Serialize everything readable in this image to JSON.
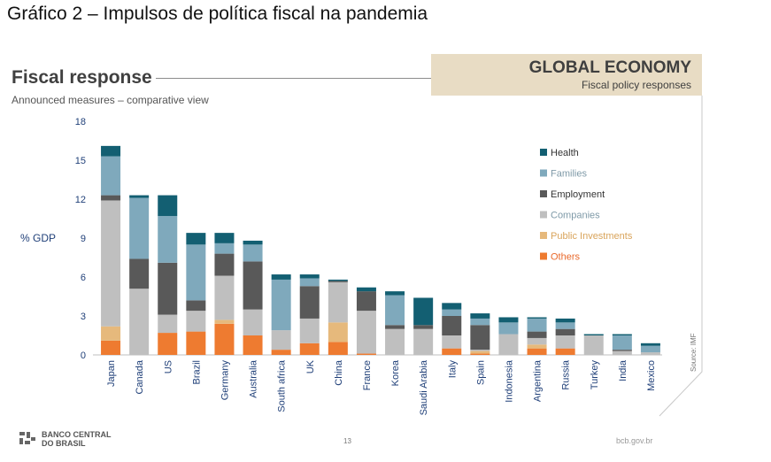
{
  "header": {
    "page_title": "Gráfico 2 – Impulsos de política fiscal na pandemia"
  },
  "slide": {
    "title": "Fiscal response",
    "subtitle": "Announced measures – comparative view",
    "badge_title": "GLOBAL ECONOMY",
    "badge_subtitle": "Fiscal policy responses",
    "source": "Source: IMF",
    "page_number": "13",
    "url": "bcb.gov.br",
    "logo_text": "BANCO CENTRAL DO BRASIL"
  },
  "chart_data": {
    "type": "bar",
    "stacked": true,
    "ylabel": "% GDP",
    "ylim": [
      0,
      18
    ],
    "yticks": [
      0,
      3,
      6,
      9,
      12,
      15,
      18
    ],
    "legend_position": "right",
    "categories": [
      "Japan",
      "Canada",
      "US",
      "Brazil",
      "Germany",
      "Australia",
      "South africa",
      "UK",
      "China",
      "France",
      "Korea",
      "Saudi Arabia",
      "Italy",
      "Spain",
      "Indonesia",
      "Argentina",
      "Russia",
      "Turkey",
      "India",
      "Mexico"
    ],
    "series": [
      {
        "name": "Others",
        "color": "#ee7b30",
        "values": [
          1.1,
          0,
          1.7,
          1.8,
          2.4,
          1.5,
          0.4,
          0.9,
          1.0,
          0.1,
          0,
          0,
          0.5,
          0.1,
          0,
          0.5,
          0.5,
          0,
          0,
          0
        ]
      },
      {
        "name": "Public Investments",
        "color": "#e6b97c",
        "values": [
          1.1,
          0,
          0,
          0,
          0.3,
          0,
          0,
          0,
          1.5,
          0,
          0,
          0,
          0,
          0.2,
          0,
          0.3,
          0,
          0,
          0,
          0
        ]
      },
      {
        "name": "Companies",
        "color": "#bfbfbf",
        "values": [
          9.7,
          5.1,
          1.4,
          1.6,
          3.4,
          2.0,
          1.5,
          1.9,
          3.1,
          3.3,
          2.0,
          2.0,
          1.0,
          0.1,
          1.6,
          0.5,
          1.0,
          1.5,
          0.3,
          0.2
        ]
      },
      {
        "name": "Employment",
        "color": "#595959",
        "values": [
          0.4,
          2.3,
          4.0,
          0.8,
          1.7,
          3.7,
          0,
          2.5,
          0.1,
          1.5,
          0.3,
          0.3,
          1.5,
          1.9,
          0,
          0.5,
          0.5,
          0,
          0.1,
          0
        ]
      },
      {
        "name": "Families",
        "color": "#7fa9bc",
        "values": [
          3.0,
          4.7,
          3.6,
          4.3,
          0.8,
          1.3,
          3.9,
          0.6,
          0,
          0,
          2.3,
          0,
          0.5,
          0.5,
          0.9,
          1.0,
          0.5,
          0,
          1.1,
          0.5
        ]
      },
      {
        "name": "Health",
        "color": "#135f72",
        "values": [
          0.8,
          0.2,
          1.6,
          0.9,
          0.8,
          0.3,
          0.4,
          0.3,
          0.1,
          0.3,
          0.3,
          2.1,
          0.5,
          0.4,
          0.4,
          0.1,
          0.3,
          0.1,
          0.1,
          0.2
        ]
      }
    ],
    "legend_order": [
      "Health",
      "Families",
      "Employment",
      "Companies",
      "Public Investments",
      "Others"
    ]
  }
}
